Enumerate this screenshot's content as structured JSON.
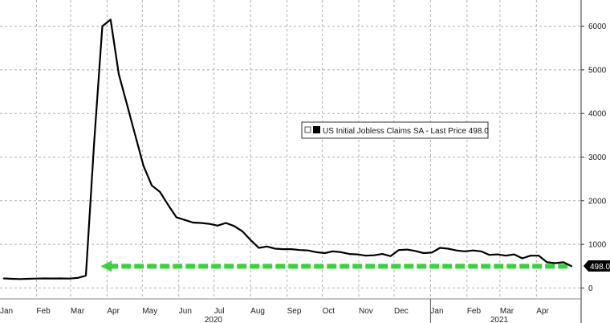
{
  "chart_data": {
    "type": "line",
    "legend": {
      "label": "US Initial Jobless Claims SA - Last Price 498.0",
      "placement": "center-right"
    },
    "last_price_label": "498.0",
    "y_axis": {
      "ylim": [
        -250,
        6600
      ],
      "ticks": [
        0,
        1000,
        2000,
        3000,
        4000,
        5000,
        6000
      ],
      "side": "right"
    },
    "x_axis": {
      "start": "2020-01-01",
      "end": "2021-05-09",
      "month_ticks": [
        {
          "label": "Jan",
          "date": "2020-01-01"
        },
        {
          "label": "Feb",
          "date": "2020-02-01"
        },
        {
          "label": "Mar",
          "date": "2020-03-01"
        },
        {
          "label": "Apr",
          "date": "2020-04-01"
        },
        {
          "label": "May",
          "date": "2020-05-01"
        },
        {
          "label": "Jun",
          "date": "2020-06-01"
        },
        {
          "label": "Jul",
          "date": "2020-07-01"
        },
        {
          "label": "Aug",
          "date": "2020-08-01"
        },
        {
          "label": "Sep",
          "date": "2020-09-01"
        },
        {
          "label": "Oct",
          "date": "2020-10-01"
        },
        {
          "label": "Nov",
          "date": "2020-11-01"
        },
        {
          "label": "Dec",
          "date": "2020-12-01"
        },
        {
          "label": "Jan",
          "date": "2021-01-01"
        },
        {
          "label": "Feb",
          "date": "2021-02-01"
        },
        {
          "label": "Mar",
          "date": "2021-03-01"
        },
        {
          "label": "Apr",
          "date": "2021-04-01"
        }
      ],
      "year_labels": [
        {
          "label": "2020",
          "date": "2020-07-01"
        },
        {
          "label": "2021",
          "date": "2021-03-01"
        }
      ],
      "year_divider": "2021-01-01"
    },
    "grid": true,
    "reference_line": {
      "value": 498,
      "color": "#3ecf3e",
      "style": "dashed-arrow"
    },
    "colors": {
      "line": "#000000",
      "grid": "#b0b0b0",
      "reference": "#3ecf3e"
    },
    "series": [
      {
        "name": "US Initial Jobless Claims SA",
        "points": [
          [
            "2020-01-04",
            220
          ],
          [
            "2020-01-11",
            210
          ],
          [
            "2020-01-18",
            205
          ],
          [
            "2020-01-25",
            210
          ],
          [
            "2020-02-01",
            215
          ],
          [
            "2020-02-08",
            220
          ],
          [
            "2020-02-15",
            218
          ],
          [
            "2020-02-22",
            219
          ],
          [
            "2020-02-29",
            215
          ],
          [
            "2020-03-07",
            230
          ],
          [
            "2020-03-14",
            282
          ],
          [
            "2020-03-21",
            3307
          ],
          [
            "2020-03-28",
            6000
          ],
          [
            "2020-04-04",
            6150
          ],
          [
            "2020-04-11",
            4900
          ],
          [
            "2020-04-18",
            4200
          ],
          [
            "2020-04-25",
            3500
          ],
          [
            "2020-05-02",
            2800
          ],
          [
            "2020-05-09",
            2350
          ],
          [
            "2020-05-16",
            2200
          ],
          [
            "2020-05-23",
            1900
          ],
          [
            "2020-05-30",
            1620
          ],
          [
            "2020-06-06",
            1560
          ],
          [
            "2020-06-13",
            1500
          ],
          [
            "2020-06-20",
            1490
          ],
          [
            "2020-06-27",
            1470
          ],
          [
            "2020-07-04",
            1430
          ],
          [
            "2020-07-11",
            1490
          ],
          [
            "2020-07-18",
            1420
          ],
          [
            "2020-07-25",
            1300
          ],
          [
            "2020-08-01",
            1100
          ],
          [
            "2020-08-08",
            920
          ],
          [
            "2020-08-15",
            950
          ],
          [
            "2020-08-22",
            900
          ],
          [
            "2020-08-29",
            890
          ],
          [
            "2020-09-05",
            890
          ],
          [
            "2020-09-12",
            870
          ],
          [
            "2020-09-19",
            860
          ],
          [
            "2020-09-26",
            820
          ],
          [
            "2020-10-03",
            800
          ],
          [
            "2020-10-10",
            840
          ],
          [
            "2020-10-17",
            820
          ],
          [
            "2020-10-24",
            780
          ],
          [
            "2020-10-31",
            770
          ],
          [
            "2020-11-07",
            740
          ],
          [
            "2020-11-14",
            750
          ],
          [
            "2020-11-21",
            780
          ],
          [
            "2020-11-28",
            730
          ],
          [
            "2020-12-05",
            870
          ],
          [
            "2020-12-12",
            880
          ],
          [
            "2020-12-19",
            850
          ],
          [
            "2020-12-26",
            800
          ],
          [
            "2021-01-02",
            810
          ],
          [
            "2021-01-09",
            920
          ],
          [
            "2021-01-16",
            900
          ],
          [
            "2021-01-23",
            860
          ],
          [
            "2021-01-30",
            840
          ],
          [
            "2021-02-06",
            860
          ],
          [
            "2021-02-13",
            840
          ],
          [
            "2021-02-20",
            760
          ],
          [
            "2021-02-27",
            770
          ],
          [
            "2021-03-06",
            740
          ],
          [
            "2021-03-13",
            770
          ],
          [
            "2021-03-20",
            680
          ],
          [
            "2021-03-27",
            740
          ],
          [
            "2021-04-03",
            740
          ],
          [
            "2021-04-10",
            590
          ],
          [
            "2021-04-17",
            570
          ],
          [
            "2021-04-24",
            590
          ],
          [
            "2021-05-01",
            498
          ]
        ]
      }
    ]
  }
}
